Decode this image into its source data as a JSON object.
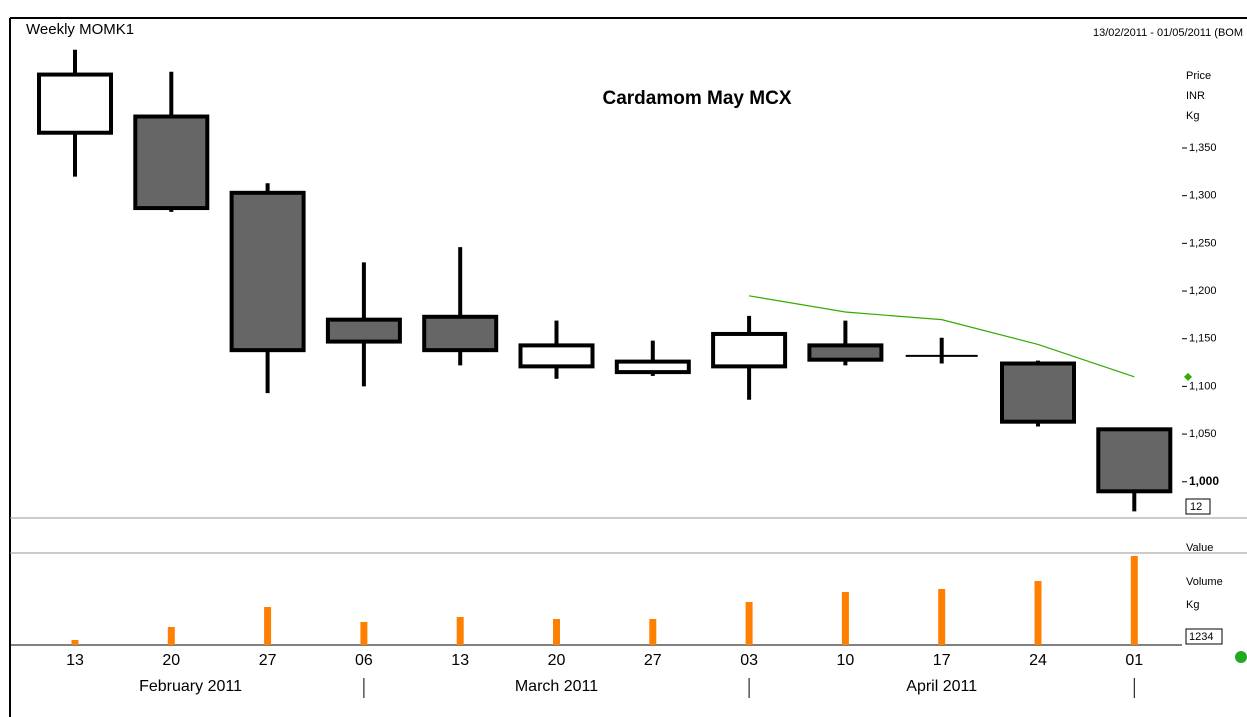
{
  "chart_data": {
    "type": "candlestick",
    "title": "Cardamom May MCX",
    "header_left": "Weekly MOMK1",
    "header_right": "13/02/2011 - 01/05/2011 (BOM",
    "price_axis_label": [
      "Price",
      "INR",
      "Kg"
    ],
    "price_box": "12",
    "value_label": "Value",
    "volume_axis_label": [
      "Volume",
      "Kg"
    ],
    "volume_box": "1234",
    "categories": [
      "13",
      "20",
      "27",
      "06",
      "13",
      "20",
      "27",
      "03",
      "10",
      "17",
      "24",
      "01"
    ],
    "months": [
      "February 2011",
      "March 2011",
      "April 2011"
    ],
    "open": [
      1366,
      1383,
      1303,
      1170,
      1173,
      1121,
      1115,
      1121,
      1143,
      1132,
      1124,
      1055
    ],
    "high": [
      1453,
      1430,
      1313,
      1230,
      1246,
      1169,
      1148,
      1174,
      1169,
      1151,
      1127,
      1055
    ],
    "low": [
      1320,
      1283,
      1093,
      1100,
      1122,
      1108,
      1111,
      1086,
      1122,
      1124,
      1058,
      969
    ],
    "close": [
      1427,
      1287,
      1138,
      1147,
      1138,
      1143,
      1126,
      1155,
      1128,
      1132,
      1063,
      990
    ],
    "up_color": "#ffffff",
    "down_color": "#666666",
    "moving_average": {
      "color": "#33aa00",
      "values": [
        null,
        null,
        null,
        null,
        null,
        null,
        null,
        1195,
        1178,
        1170,
        1144,
        1110
      ]
    },
    "last_price": 1110,
    "volume": {
      "color": "#ff8000",
      "values": [
        5,
        18,
        38,
        23,
        28,
        26,
        26,
        43,
        53,
        56,
        64,
        89
      ]
    },
    "volume_lim": [
      0,
      92
    ],
    "ylim": [
      962,
      1458
    ],
    "yticks": [
      {
        "value": 1000,
        "label": "1,000"
      },
      {
        "value": 1050,
        "label": "1,050"
      },
      {
        "value": 1100,
        "label": "1,100"
      },
      {
        "value": 1150,
        "label": "1,150"
      },
      {
        "value": 1200,
        "label": "1,200"
      },
      {
        "value": 1250,
        "label": "1,250"
      },
      {
        "value": 1300,
        "label": "1,300"
      },
      {
        "value": 1350,
        "label": "1,350"
      }
    ]
  }
}
